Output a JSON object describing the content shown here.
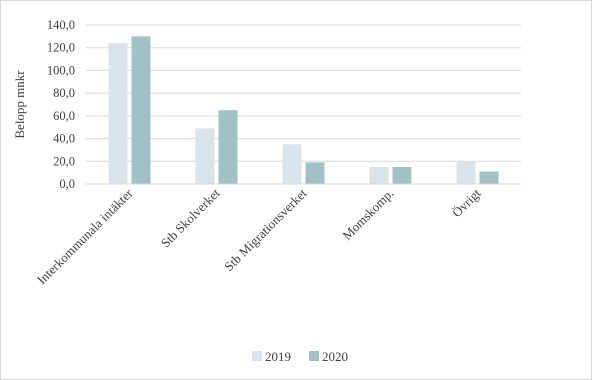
{
  "chart_data": {
    "type": "bar",
    "categories": [
      "Interkommunala intäkter",
      "Stb Skolverket",
      "Stb Migrationsverket",
      "Momskomp.",
      "Övrigt"
    ],
    "series": [
      {
        "name": "2019",
        "values": [
          124,
          49,
          35,
          15,
          20
        ],
        "color": "#d9e4e8"
      },
      {
        "name": "2020",
        "values": [
          130,
          65,
          19,
          15,
          11
        ],
        "color": "#a2c1c7"
      }
    ],
    "ylabel": "Belopp mnkr",
    "xlabel": "",
    "ylim": [
      0,
      140
    ],
    "yticks": [
      "0,0",
      "20,0",
      "40,0",
      "60,0",
      "80,0",
      "100,0",
      "120,0",
      "140,0"
    ],
    "grid": true,
    "legend": "bottom"
  }
}
